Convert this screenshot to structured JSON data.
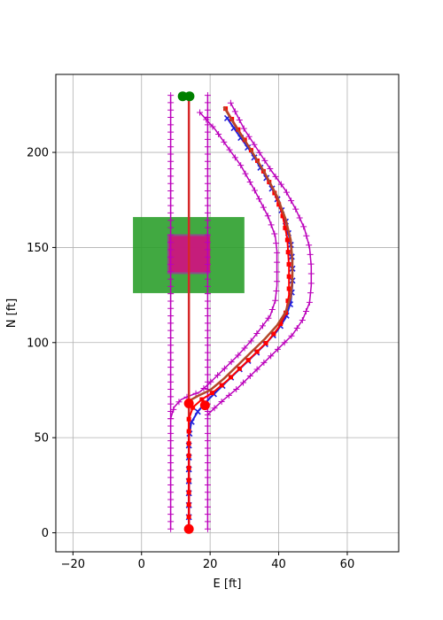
{
  "chart_data": {
    "type": "line",
    "xlabel": "E [ft]",
    "ylabel": "N [ft]",
    "xlim": [
      -25,
      75
    ],
    "ylim": [
      -10,
      241
    ],
    "xticks": [
      -20,
      0,
      20,
      40,
      60
    ],
    "yticks": [
      0,
      50,
      100,
      150,
      200
    ],
    "grid": true,
    "regions": [
      {
        "name": "",
        "color": "#2ca02c",
        "opacity": 0.9,
        "x": [
          -2.5,
          30
        ],
        "y": [
          126,
          166
        ]
      },
      {
        "name": "",
        "color": "#d62728",
        "opacity": 0.85,
        "x": [
          8,
          20
        ],
        "y": [
          137,
          156
        ]
      },
      {
        "name": "",
        "color": "#cc00cc",
        "opacity": 0.5,
        "x": [
          7.5,
          20
        ],
        "y": [
          136,
          157
        ]
      }
    ],
    "series": [
      {
        "color": "#bb00bb",
        "marker": "plus",
        "width": 1.5,
        "x": [
          8.5,
          8.5
        ],
        "y": [
          2,
          230
        ]
      },
      {
        "color": "#bb00bb",
        "marker": "plus",
        "width": 1.5,
        "x": [
          19.3,
          19.3
        ],
        "y": [
          2,
          230
        ]
      },
      {
        "color": "#bb00bb",
        "marker": "plus",
        "width": 1.5,
        "x": [
          8.5,
          9.5,
          11.5,
          14,
          17,
          20,
          24,
          28,
          32,
          35,
          37.5,
          39,
          39.5,
          39.5,
          39.5,
          39,
          37,
          33,
          29,
          25,
          21.5,
          17
        ],
        "y": [
          60,
          66,
          70,
          72,
          74,
          79,
          86,
          93,
          101,
          108,
          114,
          122,
          130,
          140,
          148,
          156,
          166,
          180,
          193,
          203,
          212,
          221
        ]
      },
      {
        "color": "#bb00bb",
        "marker": "plus",
        "width": 1.5,
        "x": [
          19.3,
          21.5,
          24,
          28,
          32,
          36,
          40,
          44,
          47,
          49,
          49.5,
          49.5,
          49,
          47.5,
          45,
          42,
          38,
          34,
          30,
          26
        ],
        "y": [
          62,
          66,
          70,
          76,
          83,
          90,
          97,
          104,
          112,
          121,
          130,
          140,
          150,
          160,
          170,
          180,
          190,
          201,
          212,
          226
        ]
      },
      {
        "color": "#d62728",
        "marker": "none",
        "width": 2.5,
        "x": [
          13.8,
          13.8
        ],
        "y": [
          2,
          230
        ]
      },
      {
        "color": "#1f1fdd",
        "marker": "x",
        "width": 2,
        "x": [
          13.8,
          13.8,
          14.5,
          16.5,
          20,
          24,
          28,
          32,
          36,
          39.5,
          42,
          43.5,
          44,
          44,
          43.5,
          42,
          39.5,
          36,
          32,
          28,
          25
        ],
        "y": [
          2,
          50,
          58,
          64,
          71,
          78,
          85,
          92,
          99,
          106,
          113,
          121,
          130,
          140,
          152,
          164,
          176,
          188,
          200,
          210,
          218
        ]
      },
      {
        "color": "#ff0000",
        "marker": "square",
        "width": 2,
        "x": [
          13.8,
          13.8,
          15,
          17.5,
          21,
          25,
          29,
          33,
          37,
          40,
          42,
          43,
          43,
          42.5,
          41,
          38.5,
          35,
          31,
          27.5,
          24.5
        ],
        "y": [
          2,
          60,
          66,
          70,
          74,
          80,
          87,
          94,
          101,
          108,
          115,
          125,
          140,
          155,
          168,
          180,
          192,
          204,
          214,
          223
        ]
      },
      {
        "color": "#b3472a",
        "marker": "none",
        "width": 2.5,
        "x": [
          13.8,
          14.5,
          16.5,
          20,
          24,
          28,
          32,
          36,
          39.5,
          42,
          43.5,
          44,
          44,
          43.5,
          42,
          39.5,
          36,
          32,
          28,
          24
        ],
        "y": [
          66,
          70,
          72,
          75,
          81,
          88,
          95,
          102,
          109,
          116,
          124,
          133,
          143,
          154,
          165,
          177,
          189,
          201,
          212,
          224
        ]
      }
    ],
    "points": [
      {
        "color": "#ff0000",
        "x": 13.8,
        "y": 2
      },
      {
        "color": "#ff0000",
        "x": 13.8,
        "y": 68
      },
      {
        "color": "#ff0000",
        "x": 18.5,
        "y": 67
      },
      {
        "color": "#008000",
        "x": 12,
        "y": 229.5
      },
      {
        "color": "#008000",
        "x": 14,
        "y": 229.5
      }
    ]
  }
}
